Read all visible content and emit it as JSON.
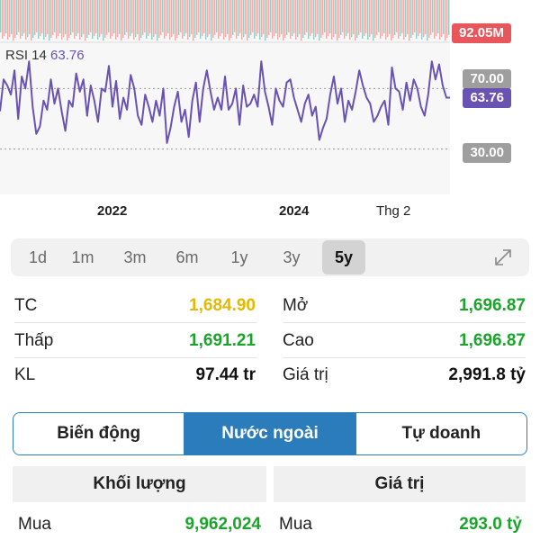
{
  "chart": {
    "volume_tag": "92.05M",
    "rsi_label": "RSI 14",
    "rsi_value": "63.76",
    "level_70": "70.00",
    "level_30": "30.00",
    "current_tag": "63.76",
    "x_labels": [
      "2022",
      "2024",
      "Thg 2"
    ],
    "colors": {
      "rsi_line": "#6a52b3",
      "volume_tag": "#e8555b",
      "current_tag": "#6a52b3",
      "level_tag": "#9e9e9e",
      "up": "#2fb59a",
      "down": "#e87070"
    }
  },
  "chart_data": {
    "type": "line",
    "title": "RSI 14",
    "ylim": [
      0,
      100
    ],
    "reference_lines": [
      70,
      30
    ],
    "series": [
      {
        "name": "RSI 14",
        "values": [
          55,
          76,
          72,
          66,
          82,
          50,
          78,
          70,
          88,
          58,
          40,
          45,
          62,
          56,
          76,
          60,
          70,
          55,
          42,
          62,
          58,
          80,
          68,
          76,
          52,
          72,
          62,
          48,
          70,
          68,
          85,
          58,
          75,
          50,
          64,
          56,
          79,
          70,
          52,
          46,
          66,
          58,
          48,
          62,
          52,
          70,
          34,
          44,
          58,
          68,
          48,
          56,
          38,
          62,
          74,
          48,
          70,
          82,
          68,
          56,
          64,
          56,
          78,
          56,
          60,
          70,
          46,
          72,
          58,
          60,
          66,
          58,
          88,
          68,
          58,
          46,
          70,
          62,
          58,
          74,
          76,
          64,
          56,
          48,
          60,
          66,
          52,
          58,
          36,
          44,
          50,
          66,
          78,
          60,
          70,
          48,
          62,
          56,
          68,
          82,
          72,
          64,
          60,
          48,
          52,
          58,
          62,
          46,
          84,
          70,
          68,
          56,
          74,
          62,
          76,
          70,
          58,
          52,
          66,
          88,
          76,
          86,
          72,
          64,
          64
        ]
      }
    ]
  },
  "ranges": {
    "items": [
      "1d",
      "1m",
      "3m",
      "6m",
      "1y",
      "3y",
      "5y"
    ],
    "active": "5y"
  },
  "stats": {
    "tc_label": "TC",
    "tc_value": "1,684.90",
    "mo_label": "Mở",
    "mo_value": "1,696.87",
    "thap_label": "Thấp",
    "thap_value": "1,691.21",
    "cao_label": "Cao",
    "cao_value": "1,696.87",
    "kl_label": "KL",
    "kl_value": "97.44 tr",
    "gt_label": "Giá trị",
    "gt_value": "2,991.8 tỷ"
  },
  "tabs": {
    "items": [
      "Biến động",
      "Nước ngoài",
      "Tự doanh"
    ],
    "active": "Nước ngoài"
  },
  "foreign": {
    "vol_header": "Khối lượng",
    "val_header": "Giá trị",
    "buy_label": "Mua",
    "buy_volume": "9,962,024",
    "buy_value_label": "Mua",
    "buy_value": "293.0 tỷ"
  },
  "colors": {
    "reference": "#e6b800",
    "up": "#1aa52a",
    "accent": "#2a7cbb"
  }
}
